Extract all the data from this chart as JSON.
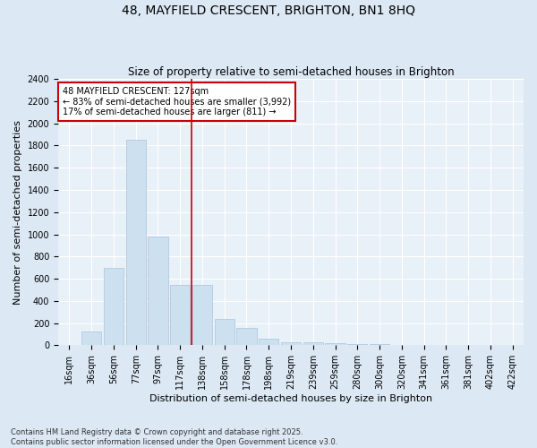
{
  "title_line1": "48, MAYFIELD CRESCENT, BRIGHTON, BN1 8HQ",
  "title_line2": "Size of property relative to semi-detached houses in Brighton",
  "xlabel": "Distribution of semi-detached houses by size in Brighton",
  "ylabel": "Number of semi-detached properties",
  "categories": [
    "16sqm",
    "36sqm",
    "56sqm",
    "77sqm",
    "97sqm",
    "117sqm",
    "138sqm",
    "158sqm",
    "178sqm",
    "198sqm",
    "219sqm",
    "239sqm",
    "259sqm",
    "280sqm",
    "300sqm",
    "320sqm",
    "341sqm",
    "361sqm",
    "381sqm",
    "402sqm",
    "422sqm"
  ],
  "values": [
    5,
    120,
    700,
    1850,
    980,
    540,
    540,
    240,
    160,
    60,
    30,
    25,
    15,
    10,
    10,
    5,
    3,
    2,
    1,
    1,
    0
  ],
  "bar_color": "#cce0f0",
  "bar_edge_color": "#aac4dc",
  "vline_x_index": 5.5,
  "vline_color": "#cc0000",
  "annotation_title": "48 MAYFIELD CRESCENT: 127sqm",
  "annotation_line1": "← 83% of semi-detached houses are smaller (3,992)",
  "annotation_line2": "17% of semi-detached houses are larger (811) →",
  "annotation_box_color": "#ffffff",
  "annotation_box_edge": "#cc0000",
  "ylim": [
    0,
    2400
  ],
  "yticks": [
    0,
    200,
    400,
    600,
    800,
    1000,
    1200,
    1400,
    1600,
    1800,
    2000,
    2200,
    2400
  ],
  "footer_line1": "Contains HM Land Registry data © Crown copyright and database right 2025.",
  "footer_line2": "Contains public sector information licensed under the Open Government Licence v3.0.",
  "bg_color": "#dce8f4",
  "plot_bg_color": "#e8f0f8",
  "grid_color": "#ffffff",
  "title_fontsize": 10,
  "subtitle_fontsize": 8.5,
  "axis_label_fontsize": 8,
  "tick_fontsize": 7,
  "footer_fontsize": 6
}
